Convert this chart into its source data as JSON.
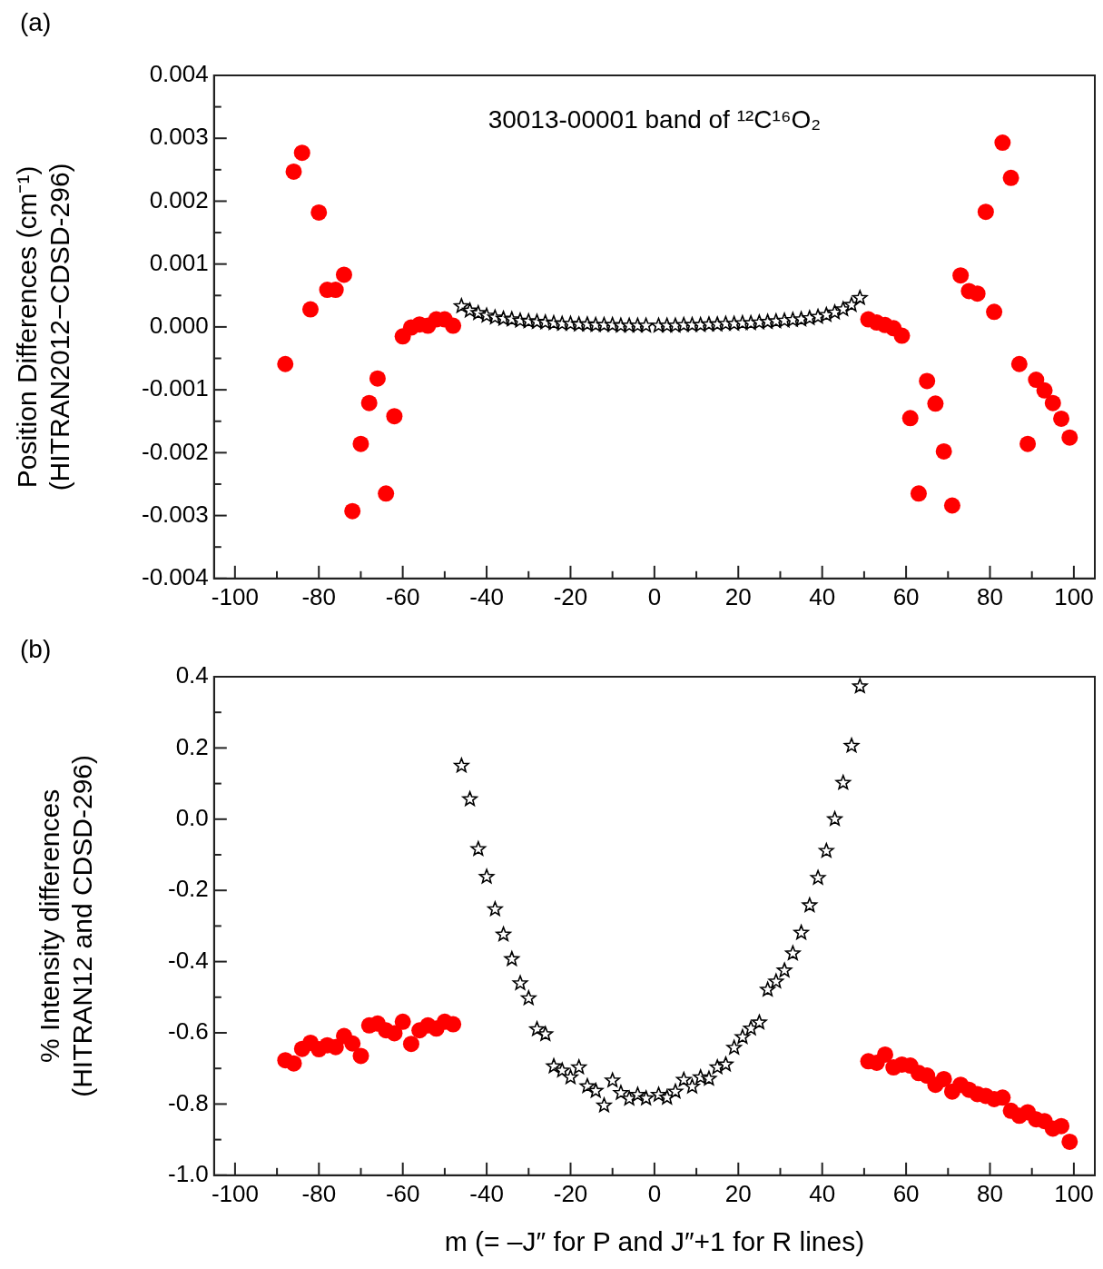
{
  "chart_data": [
    {
      "type": "scatter",
      "ylabel": "Position Differences (cm⁻¹)\n(HITRAN2012−CDSD-296)",
      "annotations": [
        "(a)",
        "30013-00001 band of ¹²C¹⁶O₂"
      ],
      "xlim": [
        -105,
        105
      ],
      "ylim": [
        -0.004,
        0.004
      ],
      "xticks": [
        -100,
        {
          "value": -90,
          "label": null
        },
        -80,
        {
          "value": -70,
          "label": null
        },
        -60,
        {
          "value": -50,
          "label": null
        },
        -40,
        {
          "value": -30,
          "label": null
        },
        -20,
        {
          "value": -10,
          "label": null
        },
        0,
        {
          "value": 10,
          "label": null
        },
        20,
        {
          "value": 30,
          "label": null
        },
        40,
        {
          "value": 50,
          "label": null
        },
        60,
        {
          "value": 70,
          "label": null
        },
        80,
        {
          "value": 90,
          "label": null
        },
        100
      ],
      "yticks": [
        {
          "value": -0.004,
          "label": "-0.004"
        },
        {
          "value": -0.0035,
          "label": null
        },
        {
          "value": -0.003,
          "label": "-0.003"
        },
        {
          "value": -0.0025,
          "label": null
        },
        {
          "value": -0.002,
          "label": "-0.002"
        },
        {
          "value": -0.0015,
          "label": null
        },
        {
          "value": -0.001,
          "label": "-0.001"
        },
        {
          "value": -0.0005,
          "label": null
        },
        {
          "value": 0,
          "label": "0.000"
        },
        {
          "value": 0.0005,
          "label": null
        },
        {
          "value": 0.001,
          "label": "0.001"
        },
        {
          "value": 0.0015,
          "label": null
        },
        {
          "value": 0.002,
          "label": "0.002"
        },
        {
          "value": 0.0025,
          "label": null
        },
        {
          "value": 0.003,
          "label": "0.003"
        },
        {
          "value": 0.0035,
          "label": null
        },
        {
          "value": 0.004,
          "label": "0.004"
        }
      ],
      "grid": false,
      "legend": false,
      "series": [
        {
          "type": "scatter",
          "marker": "circle",
          "color": "#ff0000",
          "x": [
            -88,
            -86,
            -84,
            -82,
            -80,
            -78,
            -76,
            -74,
            -72,
            -70,
            -68,
            -66,
            -64,
            -62,
            -60,
            -58,
            -56,
            -54,
            -52,
            -50,
            -48
          ],
          "values": [
            -0.00059,
            0.00247,
            0.00277,
            0.00028,
            0.00182,
            0.00059,
            0.00059,
            0.00083,
            -0.00293,
            -0.00186,
            -0.00121,
            -0.00082,
            -0.00265,
            -0.00142,
            -0.00015,
            -1e-05,
            4e-05,
            2e-05,
            0.00012,
            0.00012,
            2e-05
          ]
        },
        {
          "type": "scatter",
          "marker": "star",
          "color": "#000000",
          "x": [
            -46,
            -44,
            -42,
            -40,
            -38,
            -36,
            -34,
            -32,
            -30,
            -28,
            -26,
            -24,
            -22,
            -20,
            -18,
            -16,
            -14,
            -12,
            -10,
            -8,
            -6,
            -4,
            -2,
            1,
            3,
            5,
            7,
            9,
            11,
            13,
            15,
            17,
            19,
            21,
            23,
            25,
            27,
            29,
            31,
            33,
            35,
            37,
            39,
            41,
            43,
            45,
            47,
            49
          ],
          "values": [
            0.00033,
            0.00026,
            0.00022,
            0.00018,
            0.00015,
            0.00013,
            0.00012,
            0.0001,
            9e-05,
            8e-05,
            7e-05,
            6e-05,
            5e-05,
            5e-05,
            4e-05,
            4e-05,
            3e-05,
            3e-05,
            3e-05,
            2e-05,
            2e-05,
            2e-05,
            2e-05,
            2e-05,
            2e-05,
            2e-05,
            3e-05,
            3e-05,
            3e-05,
            4e-05,
            4e-05,
            5e-05,
            5e-05,
            6e-05,
            6e-05,
            7e-05,
            8e-05,
            9e-05,
            0.0001,
            0.00011,
            0.00012,
            0.00014,
            0.00016,
            0.00019,
            0.00023,
            0.00028,
            0.00035,
            0.00046
          ]
        },
        {
          "type": "scatter",
          "marker": "circle",
          "color": "#ff0000",
          "x": [
            51,
            53,
            55,
            57,
            59,
            61,
            63,
            65,
            67,
            69,
            71,
            73,
            75,
            77,
            79,
            81,
            83,
            85,
            87,
            89,
            91,
            93,
            95,
            97,
            99
          ],
          "values": [
            0.00012,
            7e-05,
            3e-05,
            -2e-05,
            -0.00014,
            -0.00145,
            -0.00265,
            -0.00086,
            -0.00122,
            -0.00198,
            -0.00284,
            0.00082,
            0.00057,
            0.00053,
            0.00183,
            0.00024,
            0.00293,
            0.00237,
            -0.00059,
            -0.00186,
            -0.00084,
            -0.00101,
            -0.00121,
            -0.00146,
            -0.00176
          ]
        }
      ]
    },
    {
      "type": "scatter",
      "ylabel": "% Intensity differences\n(HITRAN12 and CDSD-296)",
      "xlabel": "m (= –J″ for P and J″+1 for R lines)",
      "annotations": [
        "(b)"
      ],
      "xlim": [
        -105,
        105
      ],
      "ylim": [
        -1.0,
        0.4
      ],
      "xticks": [
        -100,
        {
          "value": -90,
          "label": null
        },
        -80,
        {
          "value": -70,
          "label": null
        },
        -60,
        {
          "value": -50,
          "label": null
        },
        -40,
        {
          "value": -30,
          "label": null
        },
        -20,
        {
          "value": -10,
          "label": null
        },
        0,
        {
          "value": 10,
          "label": null
        },
        20,
        {
          "value": 30,
          "label": null
        },
        40,
        {
          "value": 50,
          "label": null
        },
        60,
        {
          "value": 70,
          "label": null
        },
        80,
        {
          "value": 90,
          "label": null
        },
        100
      ],
      "yticks": [
        {
          "value": -1.0,
          "label": "-1.0"
        },
        {
          "value": -0.9,
          "label": null
        },
        {
          "value": -0.8,
          "label": "-0.8"
        },
        {
          "value": -0.7,
          "label": null
        },
        {
          "value": -0.6,
          "label": "-0.6"
        },
        {
          "value": -0.5,
          "label": null
        },
        {
          "value": -0.4,
          "label": "-0.4"
        },
        {
          "value": -0.3,
          "label": null
        },
        {
          "value": -0.2,
          "label": "-0.2"
        },
        {
          "value": -0.1,
          "label": null
        },
        {
          "value": 0,
          "label": "0.0"
        },
        {
          "value": 0.1,
          "label": null
        },
        {
          "value": 0.2,
          "label": "0.2"
        },
        {
          "value": 0.3,
          "label": null
        },
        {
          "value": 0.4,
          "label": "0.4"
        }
      ],
      "grid": false,
      "legend": false,
      "series": [
        {
          "type": "scatter",
          "marker": "circle",
          "color": "#ff0000",
          "x": [
            -88,
            -86,
            -84,
            -82,
            -80,
            -78,
            -76,
            -74,
            -72,
            -70,
            -68,
            -66,
            -64,
            -62,
            -60,
            -58,
            -56,
            -54,
            -52,
            -50,
            -48
          ],
          "values": [
            -0.677,
            -0.686,
            -0.645,
            -0.628,
            -0.646,
            -0.635,
            -0.64,
            -0.609,
            -0.63,
            -0.665,
            -0.579,
            -0.574,
            -0.593,
            -0.601,
            -0.569,
            -0.631,
            -0.593,
            -0.579,
            -0.588,
            -0.569,
            -0.576
          ]
        },
        {
          "type": "scatter",
          "marker": "star",
          "color": "#000000",
          "x": [
            -46,
            -44,
            -42,
            -40,
            -38,
            -36,
            -34,
            -32,
            -30,
            -28,
            -26,
            -24,
            -22,
            -20,
            -18,
            -16,
            -14,
            -12,
            -10,
            -8,
            -6,
            -4,
            -2,
            1,
            3,
            5,
            7,
            9,
            11,
            13,
            15,
            17,
            19,
            21,
            23,
            25,
            27,
            29,
            31,
            33,
            35,
            37,
            39,
            41,
            43,
            45,
            47,
            49
          ],
          "values": [
            0.15,
            0.056,
            -0.084,
            -0.162,
            -0.253,
            -0.324,
            -0.393,
            -0.461,
            -0.503,
            -0.59,
            -0.604,
            -0.694,
            -0.706,
            -0.725,
            -0.697,
            -0.75,
            -0.763,
            -0.804,
            -0.734,
            -0.769,
            -0.785,
            -0.774,
            -0.784,
            -0.774,
            -0.782,
            -0.765,
            -0.732,
            -0.751,
            -0.725,
            -0.729,
            -0.697,
            -0.689,
            -0.642,
            -0.612,
            -0.588,
            -0.571,
            -0.479,
            -0.456,
            -0.425,
            -0.377,
            -0.319,
            -0.242,
            -0.165,
            -0.089,
            0.0,
            0.102,
            0.206,
            0.373
          ]
        },
        {
          "type": "scatter",
          "marker": "circle",
          "color": "#ff0000",
          "x": [
            51,
            53,
            55,
            57,
            59,
            61,
            63,
            65,
            67,
            69,
            71,
            73,
            75,
            77,
            79,
            81,
            83,
            85,
            87,
            89,
            91,
            93,
            95,
            97,
            99
          ],
          "values": [
            -0.68,
            -0.684,
            -0.661,
            -0.697,
            -0.689,
            -0.692,
            -0.713,
            -0.72,
            -0.746,
            -0.73,
            -0.765,
            -0.746,
            -0.76,
            -0.772,
            -0.777,
            -0.786,
            -0.782,
            -0.819,
            -0.833,
            -0.823,
            -0.843,
            -0.848,
            -0.869,
            -0.862,
            -0.906
          ]
        }
      ]
    }
  ]
}
